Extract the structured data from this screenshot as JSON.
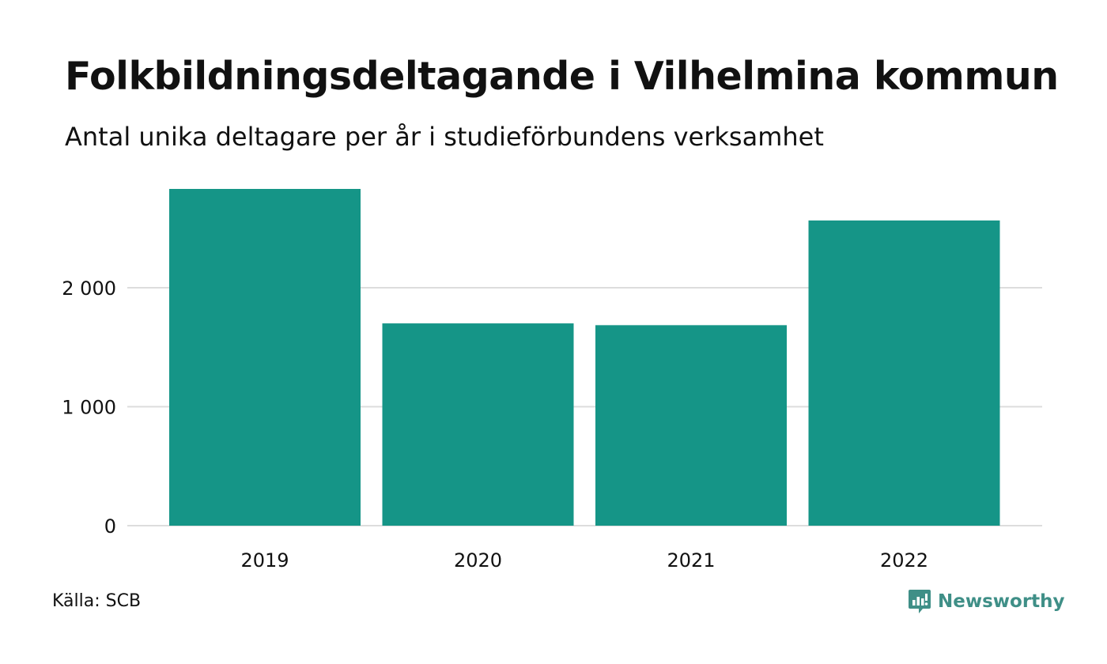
{
  "header": {
    "title": "Folkbildningsdeltagande i Vilhelmina kommun",
    "subtitle": "Antal unika deltagare per år i studieförbundens verksamhet"
  },
  "footer": {
    "source": "Källa: SCB",
    "brand": "Newsworthy",
    "brand_color": "#3f8f87"
  },
  "chart_data": {
    "type": "bar",
    "title": "Folkbildningsdeltagande i Vilhelmina kommun",
    "subtitle": "Antal unika deltagare per år i studieförbundens verksamhet",
    "xlabel": "",
    "ylabel": "",
    "categories": [
      "2019",
      "2020",
      "2021",
      "2022"
    ],
    "values": [
      2830,
      1700,
      1685,
      2565
    ],
    "ylim": [
      0,
      2830
    ],
    "yticks": [
      0,
      1000,
      2000
    ],
    "ytick_labels": [
      "0",
      "1 000",
      "2 000"
    ],
    "grid": true,
    "legend": "none",
    "bar_color": "#159587",
    "grid_color": "#dddddd"
  }
}
